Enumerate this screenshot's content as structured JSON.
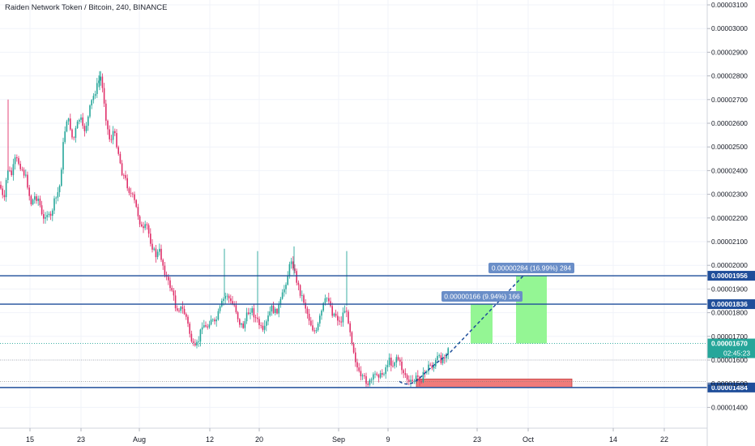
{
  "header": {
    "title": "Raiden Network Token / Bitcoin, 240, BINANCE"
  },
  "colors": {
    "up": "#26a69a",
    "down": "#e0306a",
    "level_line": "#1f4e9a",
    "grid": "#f0f3fa",
    "profit_zone": "#8ef58e",
    "loss_zone": "#f07b7b",
    "axis_text": "#131722",
    "label_bg": "#6a8ec8"
  },
  "chart_data": {
    "type": "candlestick",
    "x_ticks": [
      "15",
      "23",
      "Aug",
      "12",
      "20",
      "Sep",
      "9",
      "23",
      "Oct",
      "14",
      "22"
    ],
    "y_ticks": [
      "0.00003100",
      "0.00003000",
      "0.00002900",
      "0.00002800",
      "0.00002700",
      "0.00002600",
      "0.00002500",
      "0.00002400",
      "0.00002300",
      "0.00002200",
      "0.00002100",
      "0.00002000",
      "0.00001900",
      "0.00001800",
      "0.00001700",
      "0.00001600",
      "0.00001500",
      "0.00001400"
    ],
    "y_tick_values": [
      3.1e-05,
      3e-05,
      2.9e-05,
      2.8e-05,
      2.7e-05,
      2.6e-05,
      2.5e-05,
      2.4e-05,
      2.3e-05,
      2.2e-05,
      2.1e-05,
      2e-05,
      1.9e-05,
      1.8e-05,
      1.7e-05,
      1.6e-05,
      1.5e-05,
      1.4e-05
    ],
    "ylim": [
      1.32e-05,
      3.12e-05
    ],
    "price_path": [
      [
        0,
        2.34e-05
      ],
      [
        5,
        2.26e-05
      ],
      [
        9,
        2.41e-05
      ],
      [
        14,
        2.38e-05
      ],
      [
        19,
        2.45e-05
      ],
      [
        24,
        2.43e-05
      ],
      [
        28,
        2.4e-05
      ],
      [
        33,
        2.36e-05
      ],
      [
        38,
        2.26e-05
      ],
      [
        43,
        2.29e-05
      ],
      [
        48,
        2.28e-05
      ],
      [
        53,
        2.18e-05
      ],
      [
        57,
        2.23e-05
      ],
      [
        62,
        2.19e-05
      ],
      [
        66,
        2.26e-05
      ],
      [
        70,
        2.29e-05
      ],
      [
        74,
        2.34e-05
      ],
      [
        78,
        2.51e-05
      ],
      [
        82,
        2.62e-05
      ],
      [
        86,
        2.6e-05
      ],
      [
        90,
        2.52e-05
      ],
      [
        94,
        2.58e-05
      ],
      [
        99,
        2.63e-05
      ],
      [
        103,
        2.56e-05
      ],
      [
        108,
        2.61e-05
      ],
      [
        112,
        2.68e-05
      ],
      [
        116,
        2.72e-05
      ],
      [
        120,
        2.76e-05
      ],
      [
        124,
        2.8e-05
      ],
      [
        128,
        2.71e-05
      ],
      [
        132,
        2.59e-05
      ],
      [
        136,
        2.52e-05
      ],
      [
        140,
        2.57e-05
      ],
      [
        145,
        2.5e-05
      ],
      [
        150,
        2.4e-05
      ],
      [
        155,
        2.36e-05
      ],
      [
        160,
        2.31e-05
      ],
      [
        165,
        2.28e-05
      ],
      [
        170,
        2.22e-05
      ],
      [
        176,
        2.14e-05
      ],
      [
        181,
        2.17e-05
      ],
      [
        186,
        2.1e-05
      ],
      [
        192,
        2.04e-05
      ],
      [
        197,
        2.06e-05
      ],
      [
        202,
        1.99e-05
      ],
      [
        207,
        1.93e-05
      ],
      [
        212,
        1.9e-05
      ],
      [
        217,
        1.82e-05
      ],
      [
        222,
        1.82e-05
      ],
      [
        226,
        1.81e-05
      ],
      [
        230,
        1.78e-05
      ],
      [
        235,
        1.7e-05
      ],
      [
        240,
        1.64e-05
      ],
      [
        245,
        1.68e-05
      ],
      [
        250,
        1.76e-05
      ],
      [
        255,
        1.73e-05
      ],
      [
        260,
        1.78e-05
      ],
      [
        265,
        1.75e-05
      ],
      [
        270,
        1.8e-05
      ],
      [
        275,
        1.85e-05
      ],
      [
        280,
        1.88e-05
      ],
      [
        285,
        1.84e-05
      ],
      [
        290,
        1.83e-05
      ],
      [
        295,
        1.76e-05
      ],
      [
        300,
        1.74e-05
      ],
      [
        305,
        1.79e-05
      ],
      [
        310,
        1.82e-05
      ],
      [
        315,
        1.78e-05
      ],
      [
        320,
        1.75e-05
      ],
      [
        325,
        1.71e-05
      ],
      [
        330,
        1.77e-05
      ],
      [
        335,
        1.82e-05
      ],
      [
        340,
        1.8e-05
      ],
      [
        345,
        1.83e-05
      ],
      [
        350,
        1.89e-05
      ],
      [
        355,
        1.96e-05
      ],
      [
        360,
        2.03e-05
      ],
      [
        365,
        1.95e-05
      ],
      [
        370,
        1.89e-05
      ],
      [
        375,
        1.85e-05
      ],
      [
        380,
        1.79e-05
      ],
      [
        385,
        1.74e-05
      ],
      [
        390,
        1.71e-05
      ],
      [
        395,
        1.78e-05
      ],
      [
        400,
        1.84e-05
      ],
      [
        405,
        1.87e-05
      ],
      [
        410,
        1.8e-05
      ],
      [
        415,
        1.79e-05
      ],
      [
        420,
        1.75e-05
      ],
      [
        425,
        1.82e-05
      ],
      [
        430,
        1.77e-05
      ],
      [
        435,
        1.67e-05
      ],
      [
        440,
        1.58e-05
      ],
      [
        445,
        1.52e-05
      ],
      [
        450,
        1.52e-05
      ],
      [
        455,
        1.5e-05
      ],
      [
        460,
        1.52e-05
      ],
      [
        465,
        1.55e-05
      ],
      [
        470,
        1.53e-05
      ],
      [
        475,
        1.56e-05
      ],
      [
        480,
        1.6e-05
      ],
      [
        485,
        1.58e-05
      ],
      [
        490,
        1.62e-05
      ],
      [
        495,
        1.57e-05
      ],
      [
        500,
        1.54e-05
      ],
      [
        505,
        1.5e-05
      ],
      [
        510,
        1.51e-05
      ],
      [
        515,
        1.53e-05
      ],
      [
        520,
        1.52e-05
      ],
      [
        525,
        1.55e-05
      ],
      [
        530,
        1.58e-05
      ],
      [
        535,
        1.57e-05
      ],
      [
        540,
        1.61e-05
      ],
      [
        545,
        1.6e-05
      ],
      [
        550,
        1.63e-05
      ],
      [
        555,
        1.67e-05
      ]
    ],
    "levels": [
      {
        "value": 1.956e-05,
        "label": "0.00001956"
      },
      {
        "value": 1.836e-05,
        "label": "0.00001836"
      },
      {
        "value": 1.484e-05,
        "label": "0.00001484"
      }
    ],
    "current_price": {
      "label": "0.00001670",
      "value": 1.67e-05,
      "countdown": "02:45:23"
    },
    "targets": [
      {
        "label": "0.00000166 (9.94%) 166",
        "from": 1.67e-05,
        "to": 1.836e-05
      },
      {
        "label": "0.00000284 (16.99%) 284",
        "from": 1.67e-05,
        "to": 1.956e-05
      }
    ],
    "stop_zone": {
      "from": 1.484e-05,
      "to": 1.52e-05
    }
  }
}
